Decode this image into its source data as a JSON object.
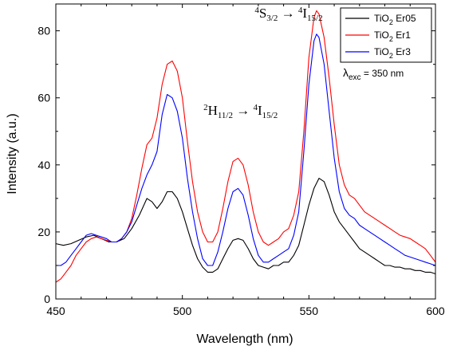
{
  "chart_data": {
    "type": "line",
    "xlabel": "Wavelength (nm)",
    "ylabel": "Intensity (a.u.)",
    "xlim": [
      450,
      600
    ],
    "ylim": [
      0,
      88
    ],
    "x_ticks": [
      "450",
      "500",
      "550",
      "600"
    ],
    "y_ticks": [
      "0",
      "20",
      "40",
      "60",
      "80"
    ],
    "legend": {
      "placement": "top-right",
      "entries": [
        {
          "base": "TiO",
          "sub": "2",
          "suffix": " Er05"
        },
        {
          "base": "TiO",
          "sub": "2",
          "suffix": " Er1"
        },
        {
          "base": "TiO",
          "sub": "2",
          "suffix": " Er3"
        }
      ]
    },
    "excitation_note": {
      "symbol": "λ",
      "sub": "exc",
      "text": " = 350 nm"
    },
    "annotations": [
      {
        "sup1": "4",
        "main1": "S",
        "sub1": "3/2",
        "arrow": "→",
        "sup2": "4",
        "main2": "I",
        "sub2": "15/2",
        "x": 542,
        "y": 84
      },
      {
        "sup1": "2",
        "main1": "H",
        "sub1": "11/2",
        "arrow": "→",
        "sup2": "4",
        "main2": "I",
        "sub2": "15/2",
        "x": 523,
        "y": 55
      }
    ],
    "series": [
      {
        "color": "#000000",
        "points": [
          [
            450,
            16.5
          ],
          [
            453,
            16
          ],
          [
            456,
            16.5
          ],
          [
            459,
            17.5
          ],
          [
            462,
            18.5
          ],
          [
            465,
            19
          ],
          [
            468,
            18
          ],
          [
            471,
            17
          ],
          [
            474,
            17
          ],
          [
            477,
            18
          ],
          [
            480,
            21
          ],
          [
            483,
            25
          ],
          [
            486,
            30
          ],
          [
            488,
            29
          ],
          [
            490,
            27
          ],
          [
            492,
            29
          ],
          [
            494,
            32
          ],
          [
            496,
            32
          ],
          [
            498,
            30
          ],
          [
            500,
            26
          ],
          [
            502,
            21
          ],
          [
            504,
            16
          ],
          [
            506,
            12
          ],
          [
            508,
            9.5
          ],
          [
            510,
            8
          ],
          [
            512,
            8
          ],
          [
            514,
            9
          ],
          [
            516,
            12
          ],
          [
            518,
            15
          ],
          [
            520,
            17.5
          ],
          [
            522,
            18
          ],
          [
            524,
            17.5
          ],
          [
            526,
            15
          ],
          [
            528,
            12
          ],
          [
            530,
            10
          ],
          [
            532,
            9.5
          ],
          [
            534,
            9
          ],
          [
            536,
            10
          ],
          [
            538,
            10
          ],
          [
            540,
            11
          ],
          [
            542,
            11
          ],
          [
            544,
            13
          ],
          [
            546,
            16
          ],
          [
            548,
            22
          ],
          [
            550,
            28
          ],
          [
            552,
            33
          ],
          [
            554,
            36
          ],
          [
            556,
            35
          ],
          [
            558,
            31
          ],
          [
            560,
            26
          ],
          [
            562,
            23
          ],
          [
            564,
            21
          ],
          [
            566,
            19
          ],
          [
            568,
            17
          ],
          [
            570,
            15
          ],
          [
            572,
            14
          ],
          [
            574,
            13
          ],
          [
            576,
            12
          ],
          [
            578,
            11
          ],
          [
            580,
            10
          ],
          [
            582,
            10
          ],
          [
            584,
            9.5
          ],
          [
            586,
            9.5
          ],
          [
            588,
            9
          ],
          [
            590,
            9
          ],
          [
            592,
            8.5
          ],
          [
            594,
            8.5
          ],
          [
            596,
            8
          ],
          [
            598,
            8
          ],
          [
            600,
            7.5
          ]
        ]
      },
      {
        "color": "#ff0000",
        "points": [
          [
            450,
            5
          ],
          [
            452,
            6
          ],
          [
            454,
            8
          ],
          [
            456,
            10
          ],
          [
            458,
            13
          ],
          [
            460,
            15
          ],
          [
            462,
            17
          ],
          [
            464,
            18
          ],
          [
            466,
            18.5
          ],
          [
            468,
            18
          ],
          [
            470,
            17.5
          ],
          [
            472,
            17
          ],
          [
            474,
            17
          ],
          [
            476,
            18
          ],
          [
            478,
            20
          ],
          [
            480,
            24
          ],
          [
            482,
            31
          ],
          [
            484,
            39
          ],
          [
            486,
            46
          ],
          [
            488,
            48
          ],
          [
            490,
            54
          ],
          [
            492,
            64
          ],
          [
            494,
            70
          ],
          [
            496,
            71
          ],
          [
            498,
            68
          ],
          [
            500,
            60
          ],
          [
            502,
            47
          ],
          [
            504,
            35
          ],
          [
            506,
            26
          ],
          [
            508,
            20
          ],
          [
            510,
            17
          ],
          [
            512,
            17
          ],
          [
            514,
            20
          ],
          [
            516,
            27
          ],
          [
            518,
            35
          ],
          [
            520,
            41
          ],
          [
            522,
            42
          ],
          [
            524,
            40
          ],
          [
            526,
            34
          ],
          [
            528,
            26
          ],
          [
            530,
            20
          ],
          [
            532,
            17
          ],
          [
            534,
            16
          ],
          [
            536,
            17
          ],
          [
            538,
            18
          ],
          [
            540,
            20
          ],
          [
            542,
            21
          ],
          [
            544,
            25
          ],
          [
            546,
            32
          ],
          [
            548,
            50
          ],
          [
            550,
            72
          ],
          [
            552,
            84
          ],
          [
            553,
            86
          ],
          [
            554,
            85
          ],
          [
            556,
            78
          ],
          [
            558,
            66
          ],
          [
            560,
            52
          ],
          [
            562,
            40
          ],
          [
            564,
            34
          ],
          [
            566,
            31
          ],
          [
            568,
            30
          ],
          [
            570,
            28
          ],
          [
            572,
            26
          ],
          [
            574,
            25
          ],
          [
            576,
            24
          ],
          [
            578,
            23
          ],
          [
            580,
            22
          ],
          [
            582,
            21
          ],
          [
            584,
            20
          ],
          [
            586,
            19
          ],
          [
            588,
            18.5
          ],
          [
            590,
            18
          ],
          [
            592,
            17
          ],
          [
            594,
            16
          ],
          [
            596,
            15
          ],
          [
            598,
            13
          ],
          [
            600,
            11
          ]
        ]
      },
      {
        "color": "#0000ff",
        "points": [
          [
            450,
            10
          ],
          [
            452,
            10
          ],
          [
            454,
            11
          ],
          [
            456,
            13
          ],
          [
            458,
            15
          ],
          [
            460,
            17
          ],
          [
            462,
            19
          ],
          [
            464,
            19.5
          ],
          [
            466,
            19
          ],
          [
            468,
            18.5
          ],
          [
            470,
            18
          ],
          [
            472,
            17
          ],
          [
            474,
            17
          ],
          [
            476,
            18
          ],
          [
            478,
            20
          ],
          [
            480,
            23
          ],
          [
            482,
            28
          ],
          [
            484,
            33
          ],
          [
            486,
            37
          ],
          [
            488,
            40
          ],
          [
            490,
            44
          ],
          [
            492,
            55
          ],
          [
            494,
            61
          ],
          [
            496,
            60
          ],
          [
            498,
            56
          ],
          [
            500,
            48
          ],
          [
            502,
            36
          ],
          [
            504,
            26
          ],
          [
            506,
            18
          ],
          [
            508,
            12
          ],
          [
            510,
            10
          ],
          [
            512,
            10
          ],
          [
            514,
            14
          ],
          [
            516,
            20
          ],
          [
            518,
            27
          ],
          [
            520,
            32
          ],
          [
            522,
            33
          ],
          [
            524,
            31
          ],
          [
            526,
            25
          ],
          [
            528,
            18
          ],
          [
            530,
            13
          ],
          [
            532,
            11
          ],
          [
            534,
            11
          ],
          [
            536,
            12
          ],
          [
            538,
            13
          ],
          [
            540,
            14
          ],
          [
            542,
            15
          ],
          [
            544,
            19
          ],
          [
            546,
            26
          ],
          [
            548,
            44
          ],
          [
            550,
            64
          ],
          [
            552,
            77
          ],
          [
            553,
            79
          ],
          [
            554,
            78
          ],
          [
            556,
            70
          ],
          [
            558,
            56
          ],
          [
            560,
            42
          ],
          [
            562,
            32
          ],
          [
            564,
            27
          ],
          [
            566,
            25
          ],
          [
            568,
            24
          ],
          [
            570,
            22
          ],
          [
            572,
            21
          ],
          [
            574,
            20
          ],
          [
            576,
            19
          ],
          [
            578,
            18
          ],
          [
            580,
            17
          ],
          [
            582,
            16
          ],
          [
            584,
            15
          ],
          [
            586,
            14
          ],
          [
            588,
            13
          ],
          [
            590,
            12.5
          ],
          [
            592,
            12
          ],
          [
            594,
            11.5
          ],
          [
            596,
            11
          ],
          [
            598,
            10.5
          ],
          [
            600,
            10
          ]
        ]
      }
    ]
  }
}
